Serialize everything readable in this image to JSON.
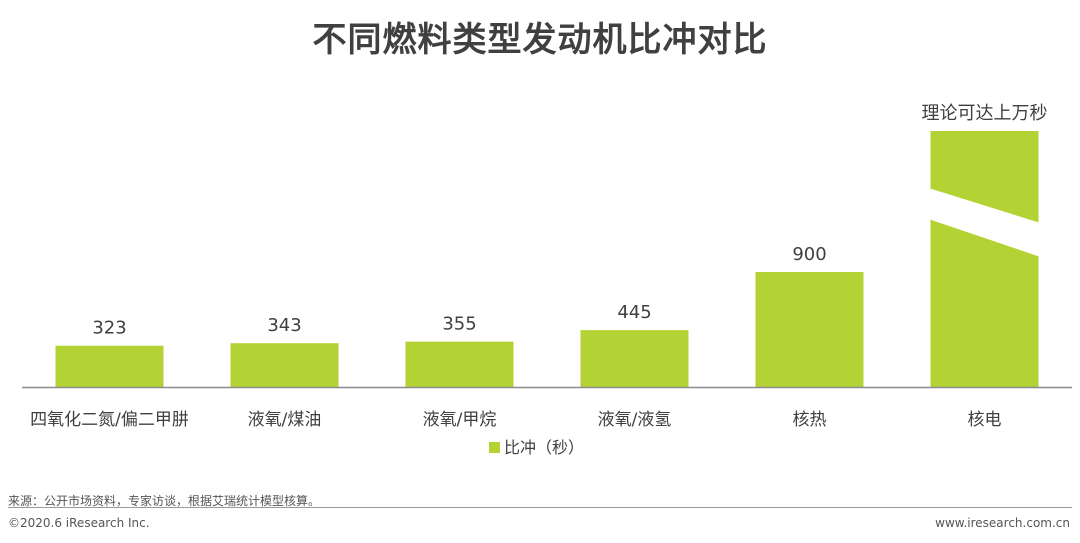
{
  "chart_data": {
    "type": "bar",
    "title": "不同燃料类型发动机比冲对比",
    "categories": [
      "四氧化二氮/偏二甲肼",
      "液氧/煤油",
      "液氧/甲烷",
      "液氧/液氢",
      "核热",
      "核电"
    ],
    "series": [
      {
        "name": "比冲（秒）",
        "values": [
          323,
          343,
          355,
          445,
          900,
          null
        ],
        "labels": [
          "323",
          "343",
          "355",
          "445",
          "900",
          "理论可达上万秒"
        ]
      }
    ],
    "color": "#b3d234",
    "axis_break_on_last_bar": true,
    "grid": false,
    "legend": "bottom-center"
  },
  "footer": {
    "source": "来源：公开市场资料，专家访谈，根据艾瑞统计模型核算。",
    "copyright": "©2020.6 iResearch Inc.",
    "website": "www.iresearch.com.cn"
  }
}
